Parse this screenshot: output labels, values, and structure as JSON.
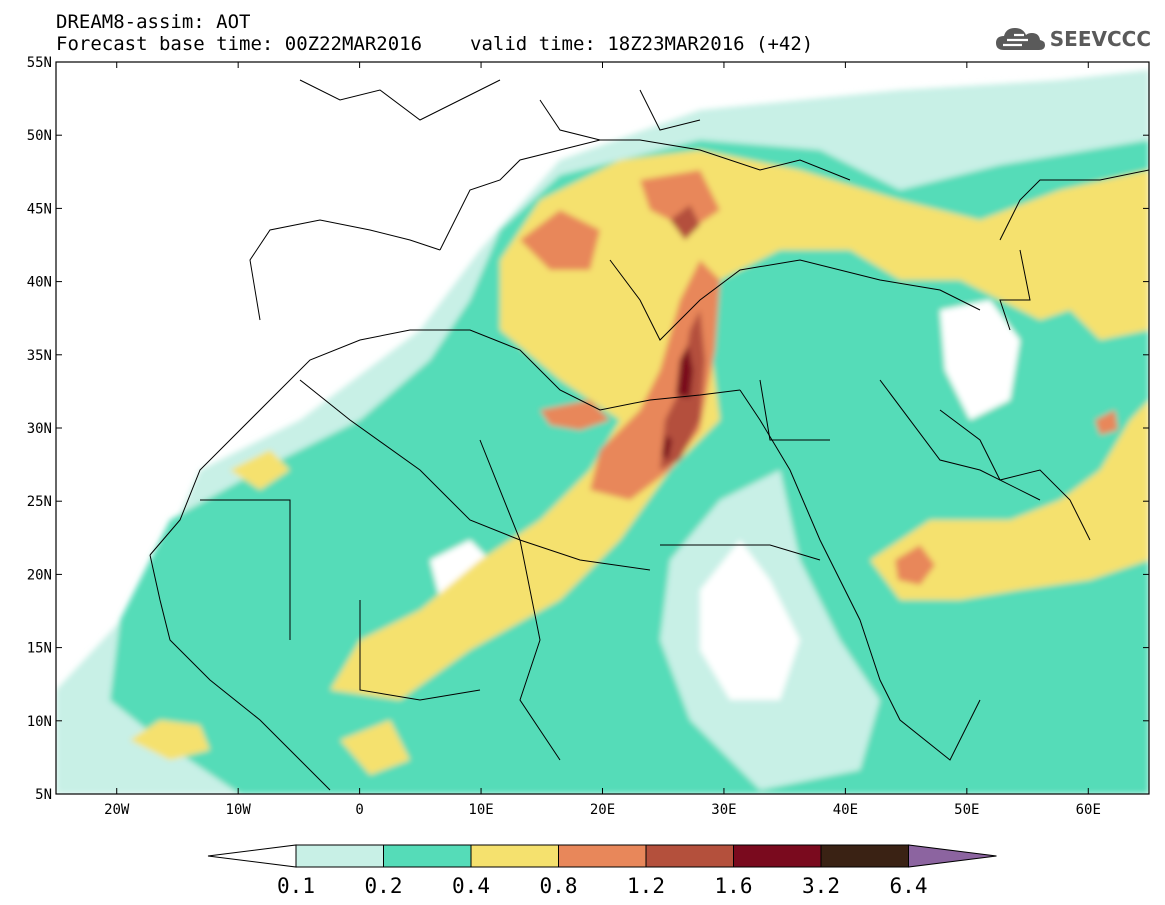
{
  "header": {
    "title_line1": "DREAM8-assim: AOT",
    "base_time": "Forecast base time: 00Z22MAR2016",
    "valid_time": "valid time: 18Z23MAR2016 (+42)"
  },
  "logo": {
    "text": "SEEVCCC",
    "icon": "cloud-icon"
  },
  "map": {
    "lat_ticks": [
      "55N",
      "50N",
      "45N",
      "40N",
      "35N",
      "30N",
      "25N",
      "20N",
      "15N",
      "10N",
      "5N"
    ],
    "lon_ticks": [
      "20W",
      "10W",
      "0",
      "10E",
      "20E",
      "30E",
      "40E",
      "50E",
      "60E"
    ],
    "lat_range": [
      5,
      55
    ],
    "lon_range": [
      -25,
      65
    ],
    "field": "Aerosol Optical Thickness"
  },
  "colorbar": {
    "levels": [
      "0.1",
      "0.2",
      "0.4",
      "0.8",
      "1.2",
      "1.6",
      "3.2",
      "6.4"
    ],
    "colors": [
      "#ffffff",
      "#c8f0e6",
      "#55dcb8",
      "#f5e16e",
      "#e8875a",
      "#b4503c",
      "#7a0a1e",
      "#3a2214",
      "#8c64a0"
    ]
  }
}
